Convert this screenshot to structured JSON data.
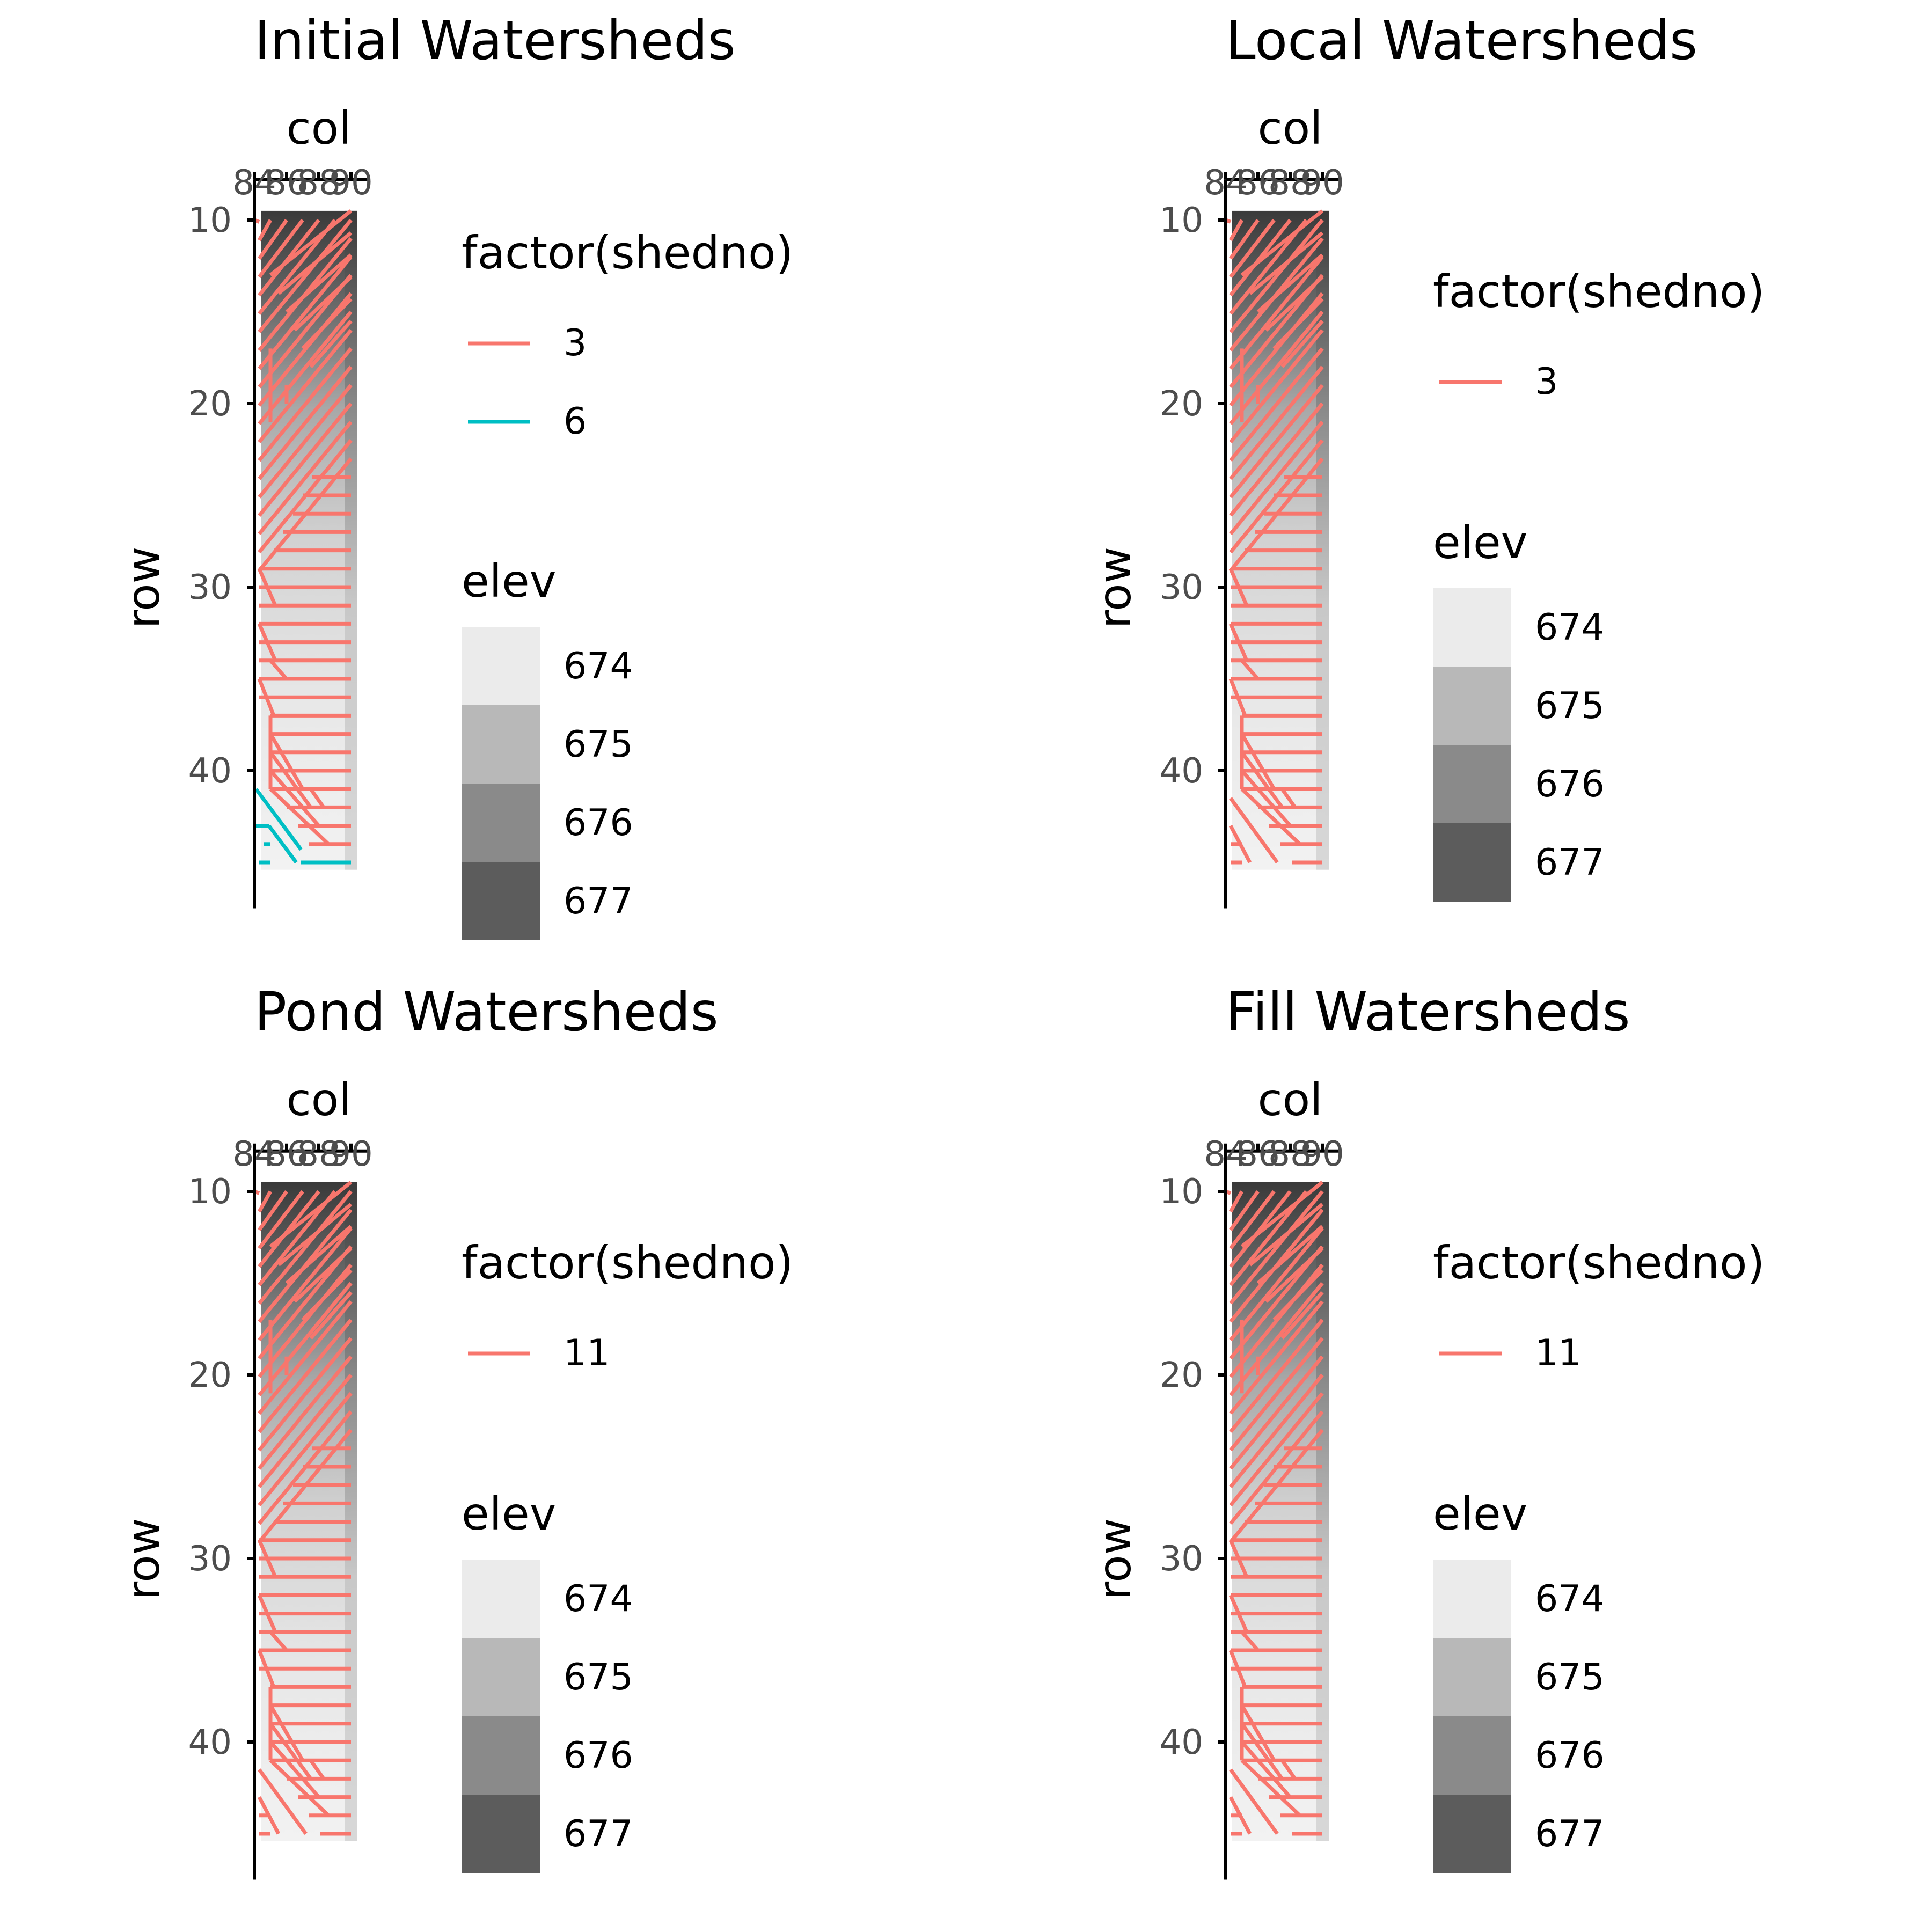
{
  "chart_data": [
    {
      "type": "heatmap",
      "title": "Initial Watersheds",
      "xlabel": "col",
      "ylabel": "row",
      "x_ticks": [
        84,
        86,
        88,
        90
      ],
      "y_ticks": [
        10,
        20,
        30,
        40
      ],
      "xlim": [
        83.9,
        91
      ],
      "ylim": [
        7.8,
        47.5
      ],
      "y_reversed": true,
      "x_axis_position": "top",
      "grid": false,
      "legend_position": "right",
      "shed_legend": {
        "title": "factor(shedno)",
        "entries": [
          {
            "label": "3",
            "color": "#f8766d"
          },
          {
            "label": "6",
            "color": "#00bfc4"
          }
        ]
      },
      "elev_legend": {
        "title": "elev",
        "entries": [
          {
            "label": "674",
            "color": "#ebebeb"
          },
          {
            "label": "675",
            "color": "#b8b8b8"
          },
          {
            "label": "676",
            "color": "#8a8a8a"
          },
          {
            "label": "677",
            "color": "#5c5c5c"
          }
        ]
      }
    },
    {
      "type": "heatmap",
      "title": "Local Watersheds",
      "xlabel": "col",
      "ylabel": "row",
      "x_ticks": [
        84,
        86,
        88,
        90
      ],
      "y_ticks": [
        10,
        20,
        30,
        40
      ],
      "xlim": [
        83.9,
        91
      ],
      "ylim": [
        7.8,
        47.5
      ],
      "y_reversed": true,
      "x_axis_position": "top",
      "grid": false,
      "legend_position": "right",
      "shed_legend": {
        "title": "factor(shedno)",
        "entries": [
          {
            "label": "3",
            "color": "#f8766d"
          }
        ]
      },
      "elev_legend": {
        "title": "elev",
        "entries": [
          {
            "label": "674",
            "color": "#ebebeb"
          },
          {
            "label": "675",
            "color": "#b8b8b8"
          },
          {
            "label": "676",
            "color": "#8a8a8a"
          },
          {
            "label": "677",
            "color": "#5c5c5c"
          }
        ]
      }
    },
    {
      "type": "heatmap",
      "title": "Pond Watersheds",
      "xlabel": "col",
      "ylabel": "row",
      "x_ticks": [
        84,
        86,
        88,
        90
      ],
      "y_ticks": [
        10,
        20,
        30,
        40
      ],
      "xlim": [
        83.9,
        91
      ],
      "ylim": [
        7.8,
        47.5
      ],
      "y_reversed": true,
      "x_axis_position": "top",
      "grid": false,
      "legend_position": "right",
      "shed_legend": {
        "title": "factor(shedno)",
        "entries": [
          {
            "label": "11",
            "color": "#f8766d"
          }
        ]
      },
      "elev_legend": {
        "title": "elev",
        "entries": [
          {
            "label": "674",
            "color": "#ebebeb"
          },
          {
            "label": "675",
            "color": "#b8b8b8"
          },
          {
            "label": "676",
            "color": "#8a8a8a"
          },
          {
            "label": "677",
            "color": "#5c5c5c"
          }
        ]
      }
    },
    {
      "type": "heatmap",
      "title": "Fill Watersheds",
      "xlabel": "col",
      "ylabel": "row",
      "x_ticks": [
        84,
        86,
        88,
        90
      ],
      "y_ticks": [
        10,
        20,
        30,
        40
      ],
      "xlim": [
        83.9,
        91
      ],
      "ylim": [
        7.8,
        47.5
      ],
      "y_reversed": true,
      "x_axis_position": "top",
      "grid": false,
      "legend_position": "right",
      "shed_legend": {
        "title": "factor(shedno)",
        "entries": [
          {
            "label": "11",
            "color": "#f8766d"
          }
        ]
      },
      "elev_legend": {
        "title": "elev",
        "entries": [
          {
            "label": "674",
            "color": "#ebebeb"
          },
          {
            "label": "675",
            "color": "#b8b8b8"
          },
          {
            "label": "676",
            "color": "#8a8a8a"
          },
          {
            "label": "677",
            "color": "#5c5c5c"
          }
        ]
      }
    }
  ]
}
